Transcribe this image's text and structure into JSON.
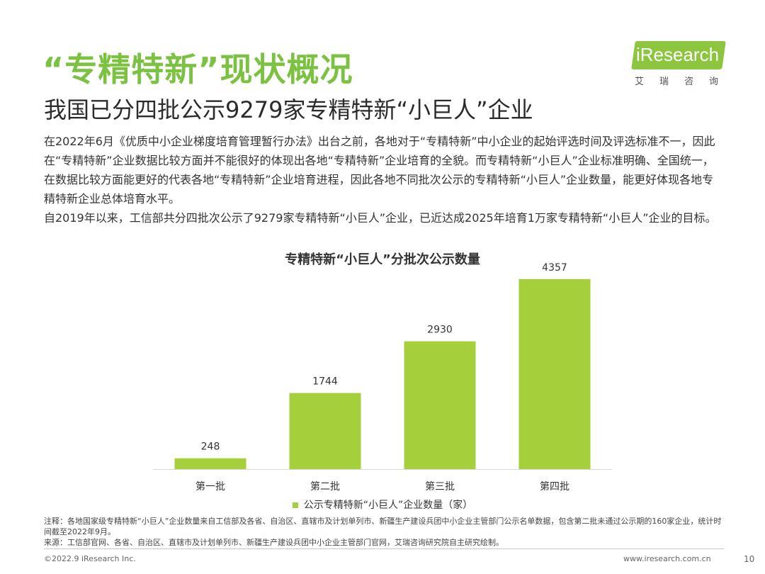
{
  "header": {
    "title": "“专精特新”现状概况",
    "subtitle": "我国已分四批公示9279家专精特新“小巨人”企业"
  },
  "logo": {
    "text": "iResearch",
    "cn": "艾瑞咨询"
  },
  "body": {
    "paragraph1": "在2022年6月《优质中小企业梯度培育管理暂行办法》出台之前，各地对于“专精特新”中小企业的起始评选时间及评选标准不一，因此在“专精特新”企业数据比较方面并不能很好的体现出各地“专精特新”企业培育的全貌。而专精特新“小巨人”企业标准明确、全国统一，在数据比较方面能更好的代表各地“专精特新”企业培育进程，因此各地不同批次公示的专精特新“小巨人”企业数量，能更好体现各地专精特新企业总体培育水平。",
    "paragraph2": "自2019年以来，工信部共分四批次公示了9279家专精特新“小巨人”企业，已近达成2025年培育1万家专精特新“小巨人”企业的目标。"
  },
  "chart_data": {
    "type": "bar",
    "title": "专精特新“小巨人”分批次公示数量",
    "categories": [
      "第一批",
      "第二批",
      "第三批",
      "第四批"
    ],
    "series": [
      {
        "name": "公示专精特新“小巨人”企业数量（家）",
        "values": [
          248,
          1744,
          2930,
          4357
        ]
      }
    ],
    "data_labels": [
      "248",
      "1744",
      "2930",
      "4357"
    ],
    "ylim": [
      0,
      4500
    ],
    "grid": false,
    "legend_position": "bottom",
    "bar_color": "#a5cf3b"
  },
  "notes": {
    "note": "注释：各地国家级专精特新“小巨人”企业数量来自工信部及各省、自治区、直辖市及计划单列市、新疆生产建设兵团中小企业主管部门公示名单数据，包含第二批未通过公示期的160家企业，统计时间截至2022年9月。",
    "source": "来源：工信部官网、各省、自治区、直辖市及计划单列市、新疆生产建设兵团中小企业主管部门官网，艾瑞咨询研究院自主研究绘制。"
  },
  "footer": {
    "copyright": "©2022.9 iResearch Inc.",
    "website": "www.iresearch.com.cn",
    "page": "10"
  },
  "colors": {
    "title_green": "#7cc242",
    "bar_green": "#a5cf3b"
  }
}
